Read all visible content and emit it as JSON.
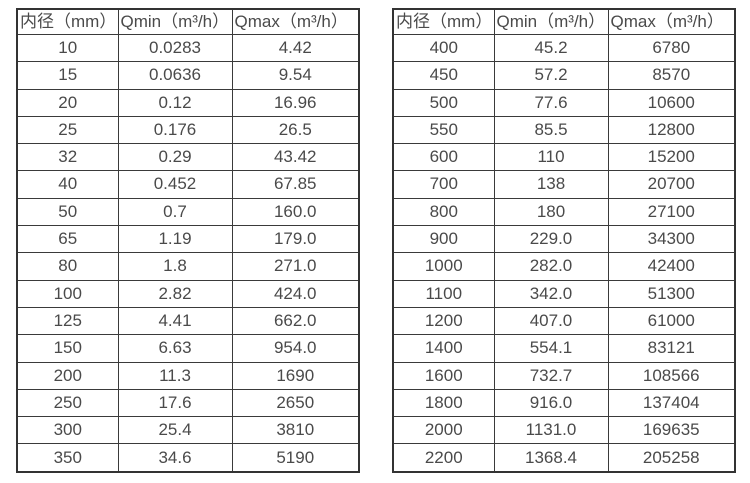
{
  "page": {
    "background": "#ffffff",
    "text_color": "#4a4a4a",
    "border_color": "#333333"
  },
  "tables": [
    {
      "name": "small-diameter-flow-table",
      "headers": [
        "内径（mm）",
        "Qmin（m³/h）",
        "Qmax（m³/h）"
      ],
      "rows": [
        [
          "10",
          "0.0283",
          "4.42"
        ],
        [
          "15",
          "0.0636",
          "9.54"
        ],
        [
          "20",
          "0.12",
          "16.96"
        ],
        [
          "25",
          "0.176",
          "26.5"
        ],
        [
          "32",
          "0.29",
          "43.42"
        ],
        [
          "40",
          "0.452",
          "67.85"
        ],
        [
          "50",
          "0.7",
          "160.0"
        ],
        [
          "65",
          "1.19",
          "179.0"
        ],
        [
          "80",
          "1.8",
          "271.0"
        ],
        [
          "100",
          "2.82",
          "424.0"
        ],
        [
          "125",
          "4.41",
          "662.0"
        ],
        [
          "150",
          "6.63",
          "954.0"
        ],
        [
          "200",
          "11.3",
          "1690"
        ],
        [
          "250",
          "17.6",
          "2650"
        ],
        [
          "300",
          "25.4",
          "3810"
        ],
        [
          "350",
          "34.6",
          "5190"
        ]
      ]
    },
    {
      "name": "large-diameter-flow-table",
      "headers": [
        "内径（mm）",
        "Qmin（m³/h）",
        "Qmax（m³/h）"
      ],
      "rows": [
        [
          "400",
          "45.2",
          "6780"
        ],
        [
          "450",
          "57.2",
          "8570"
        ],
        [
          "500",
          "77.6",
          "10600"
        ],
        [
          "550",
          "85.5",
          "12800"
        ],
        [
          "600",
          "110",
          "15200"
        ],
        [
          "700",
          "138",
          "20700"
        ],
        [
          "800",
          "180",
          "27100"
        ],
        [
          "900",
          "229.0",
          "34300"
        ],
        [
          "1000",
          "282.0",
          "42400"
        ],
        [
          "1100",
          "342.0",
          "51300"
        ],
        [
          "1200",
          "407.0",
          "61000"
        ],
        [
          "1400",
          "554.1",
          "83121"
        ],
        [
          "1600",
          "732.7",
          "108566"
        ],
        [
          "1800",
          "916.0",
          "137404"
        ],
        [
          "2000",
          "1131.0",
          "169635"
        ],
        [
          "2200",
          "1368.4",
          "205258"
        ]
      ]
    }
  ]
}
